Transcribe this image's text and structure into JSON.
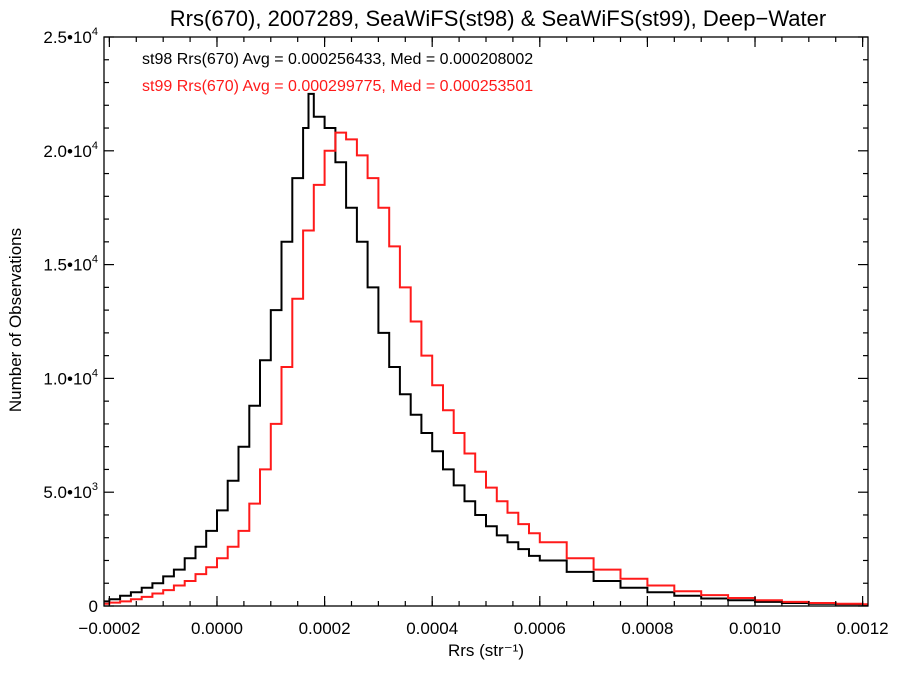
{
  "chart_data": {
    "type": "step-histogram",
    "title": "Rrs(670), 2007289, SeaWiFS(st98) & SeaWiFS(st99), Deep−Water",
    "xlabel": "Rrs (str⁻¹)",
    "ylabel": "Number of Observations",
    "xlim": [
      -0.00021,
      0.00121
    ],
    "ylim": [
      0,
      25000
    ],
    "x_ticks": [
      -0.0002,
      0.0,
      0.0002,
      0.0004,
      0.0006,
      0.0008,
      0.001,
      0.0012
    ],
    "x_tick_labels": [
      "−0.0002",
      "0.0000",
      "0.0002",
      "0.0004",
      "0.0006",
      "0.0008",
      "0.0010",
      "0.0012"
    ],
    "y_ticks": [
      0,
      5000,
      10000,
      15000,
      20000,
      25000
    ],
    "y_tick_labels": [
      {
        "mantissa": "0",
        "exp": ""
      },
      {
        "mantissa": "5.0•10",
        "exp": "3"
      },
      {
        "mantissa": "1.0•10",
        "exp": "4"
      },
      {
        "mantissa": "1.5•10",
        "exp": "4"
      },
      {
        "mantissa": "2.0•10",
        "exp": "4"
      },
      {
        "mantissa": "2.5•10",
        "exp": "4"
      }
    ],
    "legend_position": "top-left",
    "series": [
      {
        "name": "st98",
        "label": "st98 Rrs(670) Avg = 0.000256433, Med = 0.000208002",
        "color": "#000000",
        "points": [
          [
            -0.00021,
            200
          ],
          [
            -0.0002,
            300
          ],
          [
            -0.00018,
            450
          ],
          [
            -0.00016,
            600
          ],
          [
            -0.00014,
            800
          ],
          [
            -0.00012,
            1000
          ],
          [
            -0.0001,
            1300
          ],
          [
            -8e-05,
            1600
          ],
          [
            -6e-05,
            2100
          ],
          [
            -4e-05,
            2600
          ],
          [
            -2e-05,
            3300
          ],
          [
            0.0,
            4200
          ],
          [
            2e-05,
            5500
          ],
          [
            4e-05,
            7000
          ],
          [
            6e-05,
            8800
          ],
          [
            8e-05,
            10800
          ],
          [
            0.0001,
            13000
          ],
          [
            0.00012,
            16000
          ],
          [
            0.00014,
            18800
          ],
          [
            0.00016,
            21000
          ],
          [
            0.00017,
            22500
          ],
          [
            0.00018,
            21500
          ],
          [
            0.0002,
            21000
          ],
          [
            0.00022,
            19500
          ],
          [
            0.00024,
            17500
          ],
          [
            0.00026,
            16000
          ],
          [
            0.00028,
            14000
          ],
          [
            0.0003,
            12000
          ],
          [
            0.00032,
            10500
          ],
          [
            0.00034,
            9300
          ],
          [
            0.00036,
            8400
          ],
          [
            0.00038,
            7600
          ],
          [
            0.0004,
            6800
          ],
          [
            0.00042,
            6000
          ],
          [
            0.00044,
            5300
          ],
          [
            0.00046,
            4600
          ],
          [
            0.00048,
            4000
          ],
          [
            0.0005,
            3500
          ],
          [
            0.00052,
            3100
          ],
          [
            0.00054,
            2800
          ],
          [
            0.00056,
            2500
          ],
          [
            0.00058,
            2200
          ],
          [
            0.0006,
            2000
          ],
          [
            0.00065,
            1500
          ],
          [
            0.0007,
            1100
          ],
          [
            0.00075,
            800
          ],
          [
            0.0008,
            600
          ],
          [
            0.00085,
            450
          ],
          [
            0.0009,
            330
          ],
          [
            0.00095,
            250
          ],
          [
            0.001,
            180
          ],
          [
            0.00105,
            130
          ],
          [
            0.0011,
            100
          ],
          [
            0.00115,
            80
          ],
          [
            0.0012,
            60
          ]
        ]
      },
      {
        "name": "st99",
        "label": "st99 Rrs(670) Avg = 0.000299775, Med = 0.000253501",
        "color": "#ff1a1a",
        "points": [
          [
            -0.00021,
            100
          ],
          [
            -0.0002,
            150
          ],
          [
            -0.00018,
            200
          ],
          [
            -0.00016,
            300
          ],
          [
            -0.00014,
            400
          ],
          [
            -0.00012,
            550
          ],
          [
            -0.0001,
            700
          ],
          [
            -8e-05,
            900
          ],
          [
            -6e-05,
            1100
          ],
          [
            -4e-05,
            1400
          ],
          [
            -2e-05,
            1700
          ],
          [
            0.0,
            2100
          ],
          [
            2e-05,
            2600
          ],
          [
            4e-05,
            3300
          ],
          [
            6e-05,
            4500
          ],
          [
            8e-05,
            6000
          ],
          [
            0.0001,
            8000
          ],
          [
            0.00012,
            10500
          ],
          [
            0.00014,
            13500
          ],
          [
            0.00016,
            16500
          ],
          [
            0.00018,
            18500
          ],
          [
            0.0002,
            20000
          ],
          [
            0.00022,
            20800
          ],
          [
            0.00024,
            20500
          ],
          [
            0.00026,
            19800
          ],
          [
            0.00028,
            18800
          ],
          [
            0.0003,
            17500
          ],
          [
            0.00032,
            15800
          ],
          [
            0.00034,
            14000
          ],
          [
            0.00036,
            12500
          ],
          [
            0.00038,
            11000
          ],
          [
            0.0004,
            9700
          ],
          [
            0.00042,
            8600
          ],
          [
            0.00044,
            7600
          ],
          [
            0.00046,
            6700
          ],
          [
            0.00048,
            5900
          ],
          [
            0.0005,
            5200
          ],
          [
            0.00052,
            4600
          ],
          [
            0.00054,
            4100
          ],
          [
            0.00056,
            3600
          ],
          [
            0.00058,
            3200
          ],
          [
            0.0006,
            2800
          ],
          [
            0.00065,
            2100
          ],
          [
            0.0007,
            1600
          ],
          [
            0.00075,
            1200
          ],
          [
            0.0008,
            900
          ],
          [
            0.00085,
            650
          ],
          [
            0.0009,
            480
          ],
          [
            0.00095,
            350
          ],
          [
            0.001,
            250
          ],
          [
            0.00105,
            180
          ],
          [
            0.0011,
            130
          ],
          [
            0.00115,
            100
          ],
          [
            0.0012,
            80
          ]
        ]
      }
    ]
  }
}
